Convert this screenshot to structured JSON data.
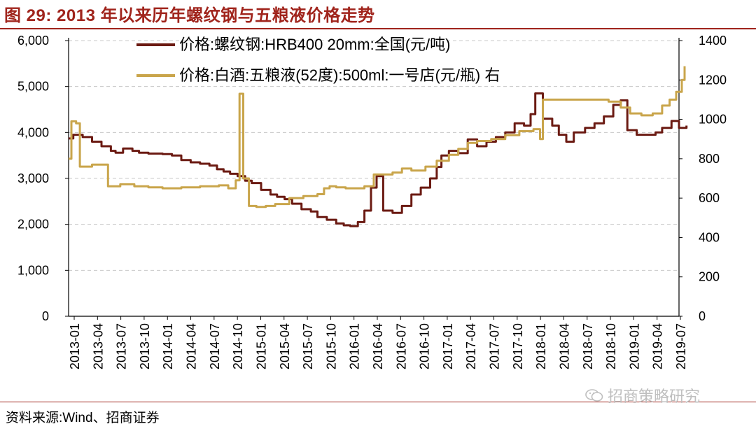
{
  "header": {
    "title": "图 29:  2013 年以来历年螺纹钢与五粮液价格走势"
  },
  "footer": {
    "source": "资料来源:Wind、招商证券",
    "watermark": "招商策略研究"
  },
  "colors": {
    "accent": "#a0241c",
    "steel": "#6b1a12",
    "liquor": "#c9a54b",
    "grid": "#c8c8c8"
  },
  "chart_data": {
    "type": "line",
    "title": "2013 年以来历年螺纹钢与五粮液价格走势",
    "x_labels": [
      "2013-01",
      "2013-04",
      "2013-07",
      "2013-10",
      "2014-01",
      "2014-04",
      "2014-07",
      "2014-10",
      "2015-01",
      "2015-04",
      "2015-07",
      "2015-10",
      "2016-01",
      "2016-04",
      "2016-07",
      "2016-10",
      "2017-01",
      "2017-04",
      "2017-07",
      "2017-10",
      "2018-01",
      "2018-04",
      "2018-07",
      "2018-10",
      "2019-01",
      "2019-04",
      "2019-07"
    ],
    "y_left": {
      "ticks": [
        "0",
        "1,000",
        "2,000",
        "3,000",
        "4,000",
        "5,000",
        "6,000"
      ],
      "range": [
        0,
        6000
      ]
    },
    "y_right": {
      "ticks": [
        "0",
        "200",
        "400",
        "600",
        "800",
        "1000",
        "1200",
        "1400"
      ],
      "range": [
        0,
        1400
      ]
    },
    "series": [
      {
        "name": "价格:螺纹钢:HRB400 20mm:全国(元/吨)",
        "axis": "left",
        "points": [
          [
            2013.0,
            3870
          ],
          [
            2013.05,
            3950
          ],
          [
            2013.15,
            3900
          ],
          [
            2013.25,
            3800
          ],
          [
            2013.35,
            3700
          ],
          [
            2013.45,
            3600
          ],
          [
            2013.5,
            3560
          ],
          [
            2013.58,
            3650
          ],
          [
            2013.68,
            3600
          ],
          [
            2013.75,
            3560
          ],
          [
            2013.85,
            3540
          ],
          [
            2014.0,
            3530
          ],
          [
            2014.1,
            3500
          ],
          [
            2014.2,
            3400
          ],
          [
            2014.3,
            3350
          ],
          [
            2014.4,
            3320
          ],
          [
            2014.5,
            3280
          ],
          [
            2014.58,
            3200
          ],
          [
            2014.65,
            3150
          ],
          [
            2014.72,
            3100
          ],
          [
            2014.8,
            3050
          ],
          [
            2014.88,
            2950
          ],
          [
            2014.95,
            2900
          ],
          [
            2015.05,
            2750
          ],
          [
            2015.15,
            2650
          ],
          [
            2015.22,
            2600
          ],
          [
            2015.3,
            2550
          ],
          [
            2015.38,
            2450
          ],
          [
            2015.48,
            2330
          ],
          [
            2015.58,
            2280
          ],
          [
            2015.65,
            2160
          ],
          [
            2015.75,
            2100
          ],
          [
            2015.85,
            2020
          ],
          [
            2015.93,
            1980
          ],
          [
            2016.0,
            1960
          ],
          [
            2016.08,
            2050
          ],
          [
            2016.15,
            2300
          ],
          [
            2016.22,
            2800
          ],
          [
            2016.28,
            3050
          ],
          [
            2016.35,
            2300
          ],
          [
            2016.45,
            2250
          ],
          [
            2016.55,
            2400
          ],
          [
            2016.65,
            2650
          ],
          [
            2016.75,
            2800
          ],
          [
            2016.85,
            3000
          ],
          [
            2016.92,
            3250
          ],
          [
            2016.97,
            3500
          ],
          [
            2017.05,
            3600
          ],
          [
            2017.15,
            3550
          ],
          [
            2017.25,
            3850
          ],
          [
            2017.35,
            3700
          ],
          [
            2017.45,
            3800
          ],
          [
            2017.55,
            3900
          ],
          [
            2017.65,
            4000
          ],
          [
            2017.75,
            4200
          ],
          [
            2017.85,
            4150
          ],
          [
            2017.92,
            4400
          ],
          [
            2017.97,
            4850
          ],
          [
            2018.05,
            4300
          ],
          [
            2018.15,
            4150
          ],
          [
            2018.22,
            3950
          ],
          [
            2018.3,
            3800
          ],
          [
            2018.38,
            4000
          ],
          [
            2018.5,
            4100
          ],
          [
            2018.6,
            4200
          ],
          [
            2018.7,
            4350
          ],
          [
            2018.8,
            4600
          ],
          [
            2018.88,
            4700
          ],
          [
            2018.95,
            4050
          ],
          [
            2019.05,
            3950
          ],
          [
            2019.15,
            3950
          ],
          [
            2019.25,
            4000
          ],
          [
            2019.32,
            4100
          ],
          [
            2019.42,
            4250
          ],
          [
            2019.5,
            4100
          ],
          [
            2019.58,
            4150
          ]
        ]
      },
      {
        "name": "价格:白酒:五粮液(52度):500ml:一号店(元/瓶) 右",
        "axis": "right",
        "points": [
          [
            2013.0,
            800
          ],
          [
            2013.03,
            990
          ],
          [
            2013.08,
            980
          ],
          [
            2013.12,
            760
          ],
          [
            2013.25,
            770
          ],
          [
            2013.42,
            660
          ],
          [
            2013.55,
            670
          ],
          [
            2013.7,
            660
          ],
          [
            2013.85,
            655
          ],
          [
            2014.0,
            650
          ],
          [
            2014.2,
            655
          ],
          [
            2014.4,
            660
          ],
          [
            2014.6,
            665
          ],
          [
            2014.7,
            650
          ],
          [
            2014.78,
            690
          ],
          [
            2014.82,
            1130
          ],
          [
            2014.86,
            700
          ],
          [
            2014.92,
            560
          ],
          [
            2015.0,
            555
          ],
          [
            2015.1,
            560
          ],
          [
            2015.2,
            570
          ],
          [
            2015.35,
            600
          ],
          [
            2015.5,
            610
          ],
          [
            2015.65,
            620
          ],
          [
            2015.72,
            650
          ],
          [
            2015.78,
            660
          ],
          [
            2015.85,
            655
          ],
          [
            2015.95,
            650
          ],
          [
            2016.05,
            650
          ],
          [
            2016.15,
            660
          ],
          [
            2016.25,
            720
          ],
          [
            2016.35,
            720
          ],
          [
            2016.45,
            730
          ],
          [
            2016.55,
            750
          ],
          [
            2016.65,
            740
          ],
          [
            2016.8,
            760
          ],
          [
            2016.92,
            790
          ],
          [
            2017.05,
            820
          ],
          [
            2017.15,
            850
          ],
          [
            2017.25,
            880
          ],
          [
            2017.35,
            890
          ],
          [
            2017.5,
            900
          ],
          [
            2017.65,
            920
          ],
          [
            2017.8,
            940
          ],
          [
            2017.95,
            950
          ],
          [
            2018.02,
            900
          ],
          [
            2018.05,
            1100
          ],
          [
            2018.2,
            1100
          ],
          [
            2018.4,
            1100
          ],
          [
            2018.6,
            1100
          ],
          [
            2018.75,
            1090
          ],
          [
            2018.88,
            1060
          ],
          [
            2018.98,
            1030
          ],
          [
            2019.1,
            1020
          ],
          [
            2019.22,
            1030
          ],
          [
            2019.32,
            1070
          ],
          [
            2019.4,
            1100
          ],
          [
            2019.47,
            1140
          ],
          [
            2019.53,
            1200
          ],
          [
            2019.56,
            1270
          ]
        ]
      }
    ],
    "legend": {
      "position": "top-left"
    }
  }
}
